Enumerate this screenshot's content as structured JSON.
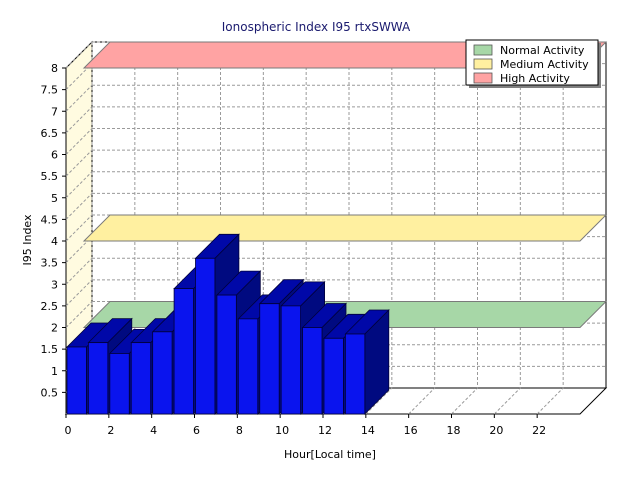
{
  "chart_data": {
    "type": "bar",
    "title": "Ionospheric Index I95 rtxSWWA",
    "xlabel": "Hour[Local time]",
    "ylabel": "I95 Index",
    "xlim": [
      0,
      24
    ],
    "ylim": [
      0,
      8
    ],
    "x_ticks": [
      "0",
      "2",
      "4",
      "6",
      "8",
      "10",
      "12",
      "14",
      "16",
      "18",
      "20",
      "22"
    ],
    "y_ticks": [
      "0.5",
      "1",
      "1.5",
      "2",
      "2.5",
      "3",
      "3.5",
      "4",
      "4.5",
      "5",
      "5.5",
      "6",
      "6.5",
      "7",
      "7.5",
      "8"
    ],
    "grid": true,
    "legend_position": "top-right",
    "categories": [
      0,
      1,
      2,
      3,
      4,
      5,
      6,
      7,
      8,
      9,
      10,
      11,
      12,
      13
    ],
    "series": [
      {
        "name": "",
        "color": "#0a14ee",
        "values": [
          1.55,
          1.65,
          1.4,
          1.65,
          1.9,
          2.9,
          3.6,
          2.75,
          2.2,
          2.55,
          2.5,
          2.0,
          1.75,
          1.85
        ]
      }
    ],
    "bands": [
      {
        "name": "Normal Activity",
        "level": 2,
        "color": "#a7d7a7"
      },
      {
        "name": "Medium Activity",
        "level": 4,
        "color": "#fff0a0"
      },
      {
        "name": "High Activity",
        "level": 8,
        "color": "#ffa3a3"
      }
    ]
  }
}
